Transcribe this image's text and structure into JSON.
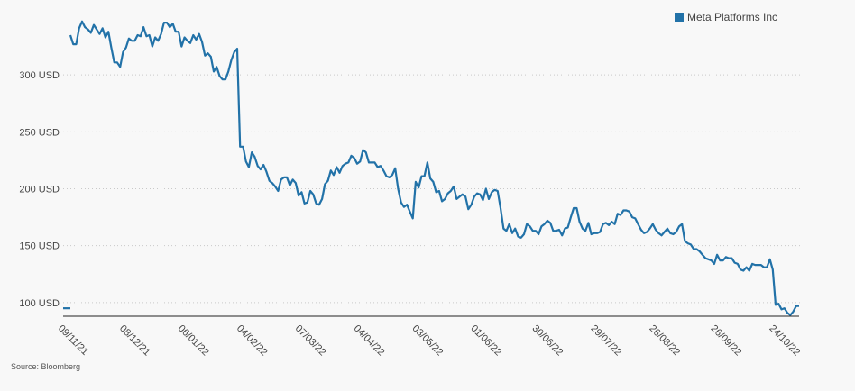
{
  "legend": {
    "label": "Meta Platforms Inc",
    "color": "#2272a8"
  },
  "source": "Source: Bloomberg",
  "chart_data": {
    "type": "line",
    "title": "",
    "xlabel": "",
    "ylabel": "",
    "ylim": [
      88,
      350
    ],
    "y_ticks": [
      100,
      150,
      200,
      250,
      300
    ],
    "y_tick_labels": [
      "100 USD",
      "150 USD",
      "200 USD",
      "250 USD",
      "300 USD"
    ],
    "x_tick_labels": [
      "09/11/21",
      "08/12/21",
      "06/01/22",
      "04/02/22",
      "07/03/22",
      "04/04/22",
      "03/05/22",
      "01/06/22",
      "30/06/22",
      "29/07/22",
      "26/08/22",
      "26/09/22",
      "24/10/22"
    ],
    "x_tick_index": [
      0,
      21,
      41,
      61,
      81,
      101,
      121,
      141,
      162,
      182,
      202,
      223,
      243
    ],
    "grid": true,
    "series": [
      {
        "name": "Meta Platforms Inc",
        "color": "#2272a8",
        "values": [
          335,
          327,
          327,
          341,
          347,
          342,
          340,
          337,
          344,
          340,
          336,
          341,
          333,
          338,
          324,
          311,
          311,
          307,
          320,
          324,
          332,
          330,
          330,
          335,
          334,
          342,
          334,
          335,
          325,
          333,
          330,
          336,
          346,
          346,
          342,
          345,
          338,
          338,
          325,
          333,
          330,
          328,
          335,
          331,
          336,
          329,
          317,
          319,
          316,
          303,
          307,
          299,
          296,
          296,
          303,
          313,
          320,
          323,
          237,
          237,
          224,
          219,
          232,
          228,
          220,
          217,
          221,
          215,
          207,
          205,
          202,
          198,
          208,
          210,
          210,
          203,
          208,
          205,
          194,
          197,
          187,
          188,
          198,
          195,
          187,
          186,
          191,
          204,
          207,
          216,
          212,
          219,
          214,
          220,
          222,
          223,
          229,
          227,
          222,
          224,
          234,
          232,
          223,
          223,
          223,
          219,
          220,
          216,
          211,
          210,
          212,
          218,
          200,
          188,
          184,
          186,
          180,
          174,
          206,
          201,
          211,
          211,
          223,
          209,
          206,
          197,
          198,
          189,
          191,
          196,
          198,
          202,
          191,
          193,
          195,
          193,
          182,
          186,
          193,
          196,
          195,
          190,
          200,
          191,
          197,
          199,
          198,
          183,
          165,
          163,
          169,
          161,
          165,
          158,
          157,
          160,
          169,
          167,
          163,
          163,
          160,
          167,
          169,
          172,
          170,
          163,
          163,
          164,
          159,
          165,
          166,
          175,
          183,
          183,
          171,
          165,
          163,
          170,
          160,
          161,
          161,
          162,
          169,
          170,
          168,
          171,
          169,
          178,
          177,
          181,
          181,
          180,
          175,
          174,
          169,
          164,
          161,
          162,
          165,
          169,
          164,
          161,
          159,
          162,
          165,
          161,
          160,
          162,
          167,
          169,
          154,
          152,
          151,
          147,
          147,
          145,
          142,
          139,
          138,
          137,
          134,
          142,
          137,
          137,
          140,
          139,
          139,
          135,
          134,
          129,
          128,
          131,
          128,
          134,
          133,
          133,
          133,
          131,
          131,
          138,
          129,
          98,
          99,
          94,
          95,
          91,
          89,
          92,
          97,
          97
        ]
      }
    ]
  }
}
